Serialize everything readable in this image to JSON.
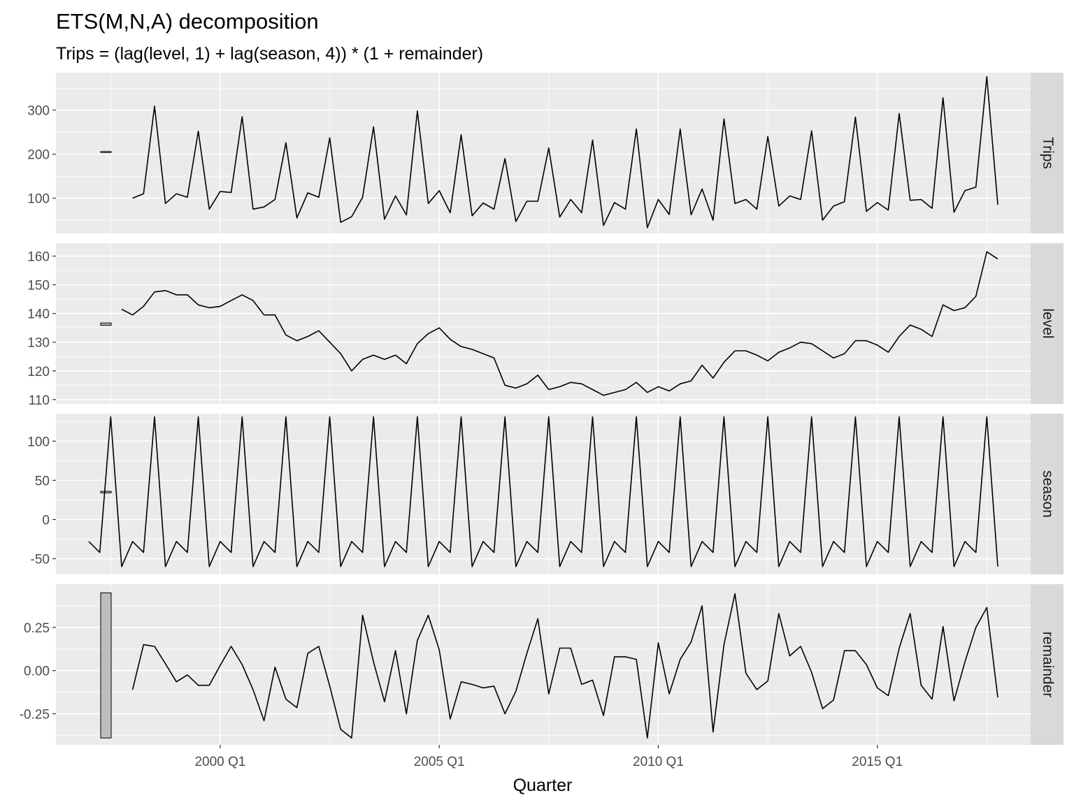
{
  "chart_data": {
    "type": "line",
    "title": "ETS(M,N,A) decomposition",
    "subtitle": "Trips = (lag(level, 1) + lag(season, 4)) * (1 + remainder)",
    "xlabel": "Quarter",
    "x_ticks": [
      "2000 Q1",
      "2005 Q1",
      "2010 Q1",
      "2015 Q1"
    ],
    "x_tick_values": [
      2000,
      2005,
      2010,
      2015
    ],
    "x_start": 1998,
    "x_step": 0.25,
    "xlim": [
      1996.25,
      2018.5
    ],
    "grid": true,
    "panels": [
      {
        "name": "Trips",
        "ylim": [
          20,
          385
        ],
        "y_ticks": [
          100,
          200,
          300
        ],
        "y_tick_labels": [
          "100",
          "200",
          "300"
        ],
        "scale_bar": [
          204,
          206
        ],
        "x_offset": 0,
        "values": [
          100,
          110,
          309,
          88,
          110,
          102,
          252,
          75,
          115,
          113,
          285,
          75,
          80,
          97,
          226,
          55,
          112,
          102,
          237,
          45,
          58,
          102,
          262,
          52,
          105,
          62,
          298,
          88,
          117,
          67,
          244,
          60,
          89,
          75,
          190,
          47,
          93,
          93,
          214,
          57,
          97,
          67,
          232,
          38,
          90,
          75,
          257,
          33,
          97,
          63,
          257,
          62,
          121,
          50,
          280,
          88,
          97,
          75,
          240,
          82,
          105,
          97,
          253,
          50,
          82,
          92,
          284,
          70,
          90,
          73,
          292,
          95,
          97,
          77,
          328,
          68,
          117,
          125,
          376,
          85
        ]
      },
      {
        "name": "level",
        "ylim": [
          108.5,
          164.5
        ],
        "y_ticks": [
          110,
          120,
          130,
          140,
          150,
          160
        ],
        "y_tick_labels": [
          "110",
          "120",
          "130",
          "140",
          "150",
          "160"
        ],
        "scale_bar": [
          135.9,
          136.7
        ],
        "x_offset": -0.25,
        "values": [
          141.5,
          139.5,
          142.5,
          147.5,
          148,
          146.5,
          146.5,
          143,
          142,
          142.5,
          144.5,
          146.5,
          144.5,
          139.5,
          139.5,
          132.5,
          130.5,
          132,
          134,
          130,
          126,
          120,
          124,
          125.5,
          124,
          125.5,
          122.5,
          129.5,
          133,
          135,
          131,
          128.5,
          127.5,
          126,
          124.5,
          115,
          114,
          115.5,
          118.5,
          113.5,
          114.5,
          116,
          115.5,
          113.5,
          111.5,
          112.5,
          113.5,
          116,
          112.5,
          114.5,
          113,
          115.5,
          116.5,
          122,
          117.5,
          123,
          127,
          127,
          125.5,
          123.5,
          126.5,
          128,
          130,
          129.5,
          127,
          124.5,
          126,
          130.5,
          130.5,
          129,
          126.5,
          132,
          136,
          134.5,
          132,
          143,
          141,
          142,
          146,
          161.5,
          159
        ]
      },
      {
        "name": "season",
        "ylim": [
          -70,
          135
        ],
        "y_ticks": [
          -50,
          0,
          50,
          100
        ],
        "y_tick_labels": [
          "-50",
          "0",
          "50",
          "100"
        ],
        "scale_bar": [
          34,
          36
        ],
        "x_offset": -1.0,
        "values": [
          -28,
          -42,
          131,
          -60,
          -28,
          -42,
          131,
          -60,
          -28,
          -42,
          131,
          -60,
          -28,
          -42,
          131,
          -60,
          -28,
          -42,
          131,
          -60,
          -28,
          -42,
          131,
          -60,
          -28,
          -42,
          131,
          -60,
          -28,
          -42,
          131,
          -60,
          -28,
          -42,
          131,
          -60,
          -28,
          -42,
          131,
          -60,
          -28,
          -42,
          131,
          -60,
          -28,
          -42,
          131,
          -60,
          -28,
          -42,
          131,
          -60,
          -28,
          -42,
          131,
          -60,
          -28,
          -42,
          131,
          -60,
          -28,
          -42,
          131,
          -60,
          -28,
          -42,
          131,
          -60,
          -28,
          -42,
          131,
          -60,
          -28,
          -42,
          131,
          -60,
          -28,
          -42,
          131,
          -60,
          -28,
          -42,
          131,
          -60
        ]
      },
      {
        "name": "remainder",
        "ylim": [
          -0.43,
          0.5
        ],
        "y_ticks": [
          -0.25,
          0,
          0.25
        ],
        "y_tick_labels": [
          "-0.25",
          "0.00",
          "0.25"
        ],
        "scale_bar": [
          -0.39,
          0.45
        ],
        "x_offset": 0,
        "values": [
          -0.11,
          0.15,
          0.14,
          0.04,
          -0.065,
          -0.025,
          -0.085,
          -0.085,
          0.03,
          0.14,
          0.035,
          -0.11,
          -0.29,
          0.02,
          -0.165,
          -0.215,
          0.1,
          0.14,
          -0.09,
          -0.34,
          -0.39,
          0.32,
          0.05,
          -0.18,
          0.115,
          -0.25,
          0.175,
          0.32,
          0.12,
          -0.28,
          -0.065,
          -0.08,
          -0.1,
          -0.09,
          -0.25,
          -0.12,
          0.1,
          0.3,
          -0.135,
          0.13,
          0.13,
          -0.08,
          -0.055,
          -0.26,
          0.08,
          0.08,
          0.065,
          -0.39,
          0.16,
          -0.135,
          0.065,
          0.165,
          0.375,
          -0.355,
          0.15,
          0.445,
          -0.015,
          -0.11,
          -0.06,
          0.33,
          0.085,
          0.14,
          -0.01,
          -0.22,
          -0.17,
          0.115,
          0.115,
          0.035,
          -0.1,
          -0.145,
          0.13,
          0.33,
          -0.085,
          -0.165,
          0.255,
          -0.175,
          0.05,
          0.25,
          0.365,
          -0.155
        ]
      }
    ]
  }
}
